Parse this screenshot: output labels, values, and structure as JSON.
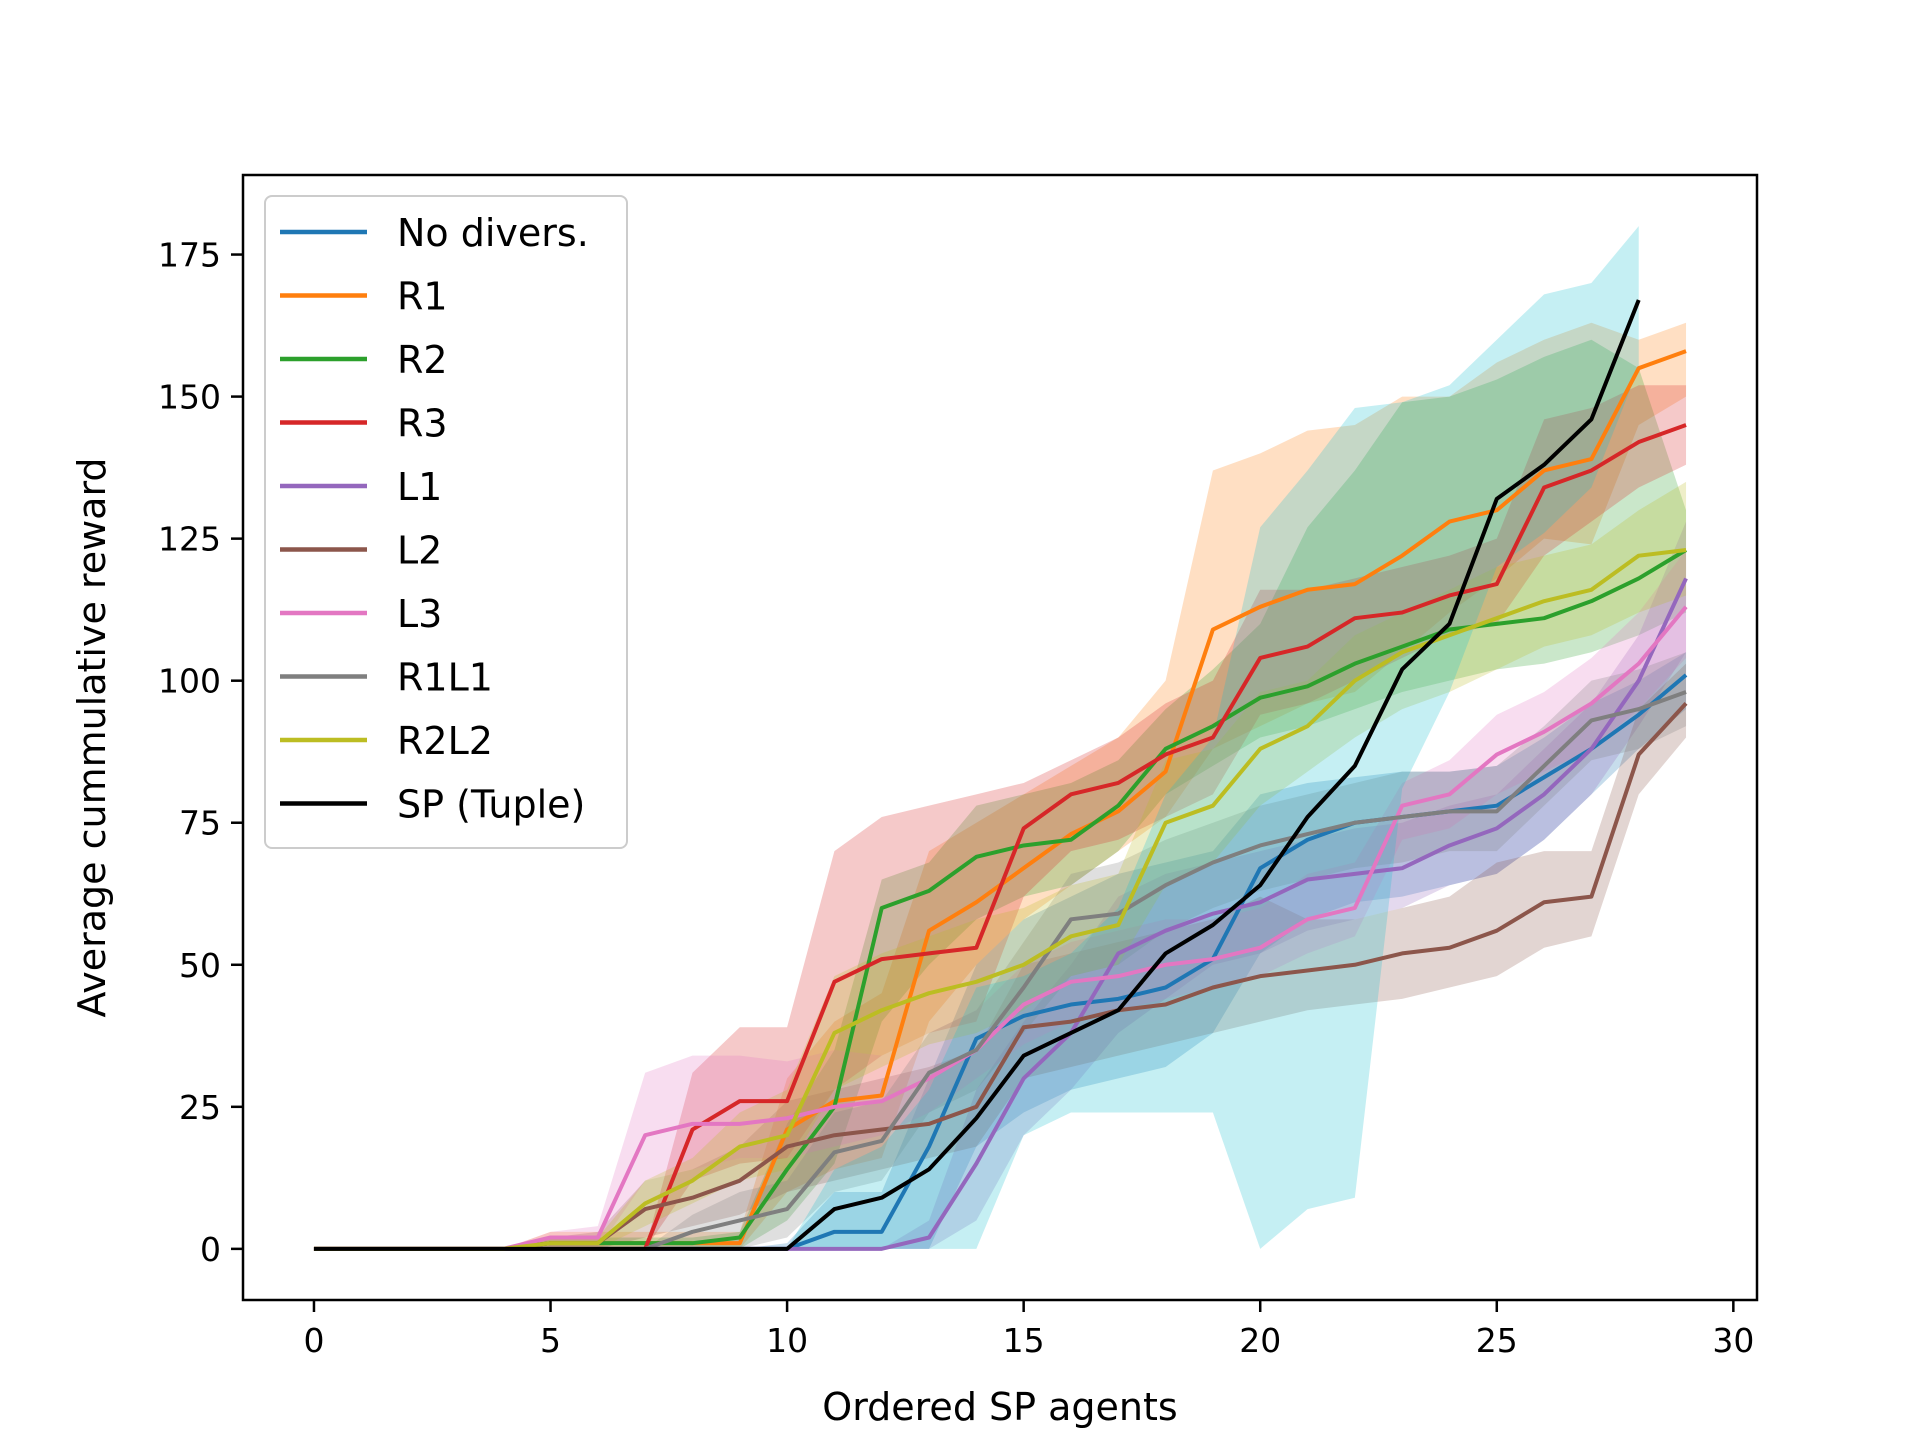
{
  "chart_data": {
    "type": "line",
    "title": "",
    "xlabel": "Ordered SP agents",
    "ylabel": "Average cummulative reward",
    "xlim": [
      -1.5,
      30.5
    ],
    "ylim": [
      -9,
      189
    ],
    "xticks": [
      0,
      5,
      10,
      15,
      20,
      25,
      30
    ],
    "yticks": [
      0,
      25,
      50,
      75,
      100,
      125,
      150,
      175
    ],
    "grid": false,
    "legend_position": "top-left",
    "series": [
      {
        "name": "No divers.",
        "color": "#1f77b4",
        "x": [
          0,
          1,
          2,
          3,
          4,
          5,
          6,
          7,
          8,
          9,
          10,
          11,
          12,
          13,
          14,
          15,
          16,
          17,
          18,
          19,
          20,
          21,
          22,
          23,
          24,
          25,
          26,
          27,
          28,
          29
        ],
        "values": [
          0,
          0,
          0,
          0,
          0,
          0,
          0,
          0,
          0,
          0,
          0,
          3,
          3,
          18,
          37,
          41,
          43,
          44,
          46,
          51,
          67,
          72,
          75,
          76,
          77,
          78,
          83,
          88,
          94,
          101
        ],
        "lower": [
          0,
          0,
          0,
          0,
          0,
          0,
          0,
          0,
          0,
          0,
          0,
          0,
          0,
          0,
          18,
          24,
          28,
          30,
          32,
          38,
          52,
          58,
          61,
          62,
          64,
          66,
          72,
          80,
          88,
          95
        ],
        "upper": [
          0,
          0,
          0,
          0,
          0,
          0,
          0,
          0,
          0,
          0,
          1,
          10,
          10,
          30,
          50,
          58,
          62,
          66,
          68,
          70,
          80,
          82,
          83,
          84,
          84,
          85,
          90,
          96,
          100,
          105
        ]
      },
      {
        "name": "R1",
        "color": "#ff7f0e",
        "x": [
          0,
          1,
          2,
          3,
          4,
          5,
          6,
          7,
          8,
          9,
          10,
          11,
          12,
          13,
          14,
          15,
          16,
          17,
          18,
          19,
          20,
          21,
          22,
          23,
          24,
          25,
          26,
          27,
          28,
          29
        ],
        "values": [
          0,
          0,
          0,
          0,
          0,
          1,
          1,
          1,
          1,
          1,
          21,
          26,
          27,
          56,
          61,
          67,
          73,
          77,
          84,
          109,
          113,
          116,
          117,
          122,
          128,
          130,
          137,
          139,
          155,
          158
        ],
        "lower": [
          0,
          0,
          0,
          0,
          0,
          0,
          0,
          0,
          0,
          0,
          10,
          14,
          16,
          40,
          50,
          58,
          64,
          70,
          76,
          88,
          92,
          96,
          98,
          105,
          112,
          118,
          125,
          124,
          145,
          150
        ],
        "upper": [
          0,
          0,
          0,
          0,
          0,
          3,
          3,
          3,
          3,
          3,
          30,
          40,
          45,
          70,
          75,
          80,
          85,
          90,
          100,
          137,
          140,
          144,
          145,
          150,
          150,
          156,
          160,
          163,
          160,
          163
        ]
      },
      {
        "name": "R2",
        "color": "#2ca02c",
        "x": [
          0,
          1,
          2,
          3,
          4,
          5,
          6,
          7,
          8,
          9,
          10,
          11,
          12,
          13,
          14,
          15,
          16,
          17,
          18,
          19,
          20,
          21,
          22,
          23,
          24,
          25,
          26,
          27,
          28,
          29
        ],
        "values": [
          0,
          0,
          0,
          0,
          0,
          1,
          1,
          1,
          1,
          2,
          14,
          25,
          60,
          63,
          69,
          71,
          72,
          78,
          88,
          92,
          97,
          99,
          103,
          106,
          109,
          110,
          111,
          114,
          118,
          123
        ],
        "lower": [
          0,
          0,
          0,
          0,
          0,
          0,
          0,
          0,
          0,
          0,
          5,
          15,
          40,
          50,
          58,
          62,
          64,
          70,
          80,
          85,
          90,
          92,
          95,
          98,
          100,
          102,
          103,
          105,
          108,
          112
        ],
        "upper": [
          0,
          0,
          0,
          0,
          0,
          2,
          2,
          2,
          2,
          3,
          22,
          35,
          65,
          68,
          78,
          80,
          82,
          86,
          95,
          102,
          110,
          127,
          137,
          149,
          150,
          153,
          157,
          160,
          155,
          130
        ]
      },
      {
        "name": "R3",
        "color": "#d62728",
        "x": [
          0,
          1,
          2,
          3,
          4,
          5,
          6,
          7,
          8,
          9,
          10,
          11,
          12,
          13,
          14,
          15,
          16,
          17,
          18,
          19,
          20,
          21,
          22,
          23,
          24,
          25,
          26,
          27,
          28,
          29
        ],
        "values": [
          0,
          0,
          0,
          0,
          0,
          0,
          0,
          0,
          21,
          26,
          26,
          47,
          51,
          52,
          53,
          74,
          80,
          82,
          87,
          90,
          104,
          106,
          111,
          112,
          115,
          117,
          134,
          137,
          142,
          145
        ],
        "lower": [
          0,
          0,
          0,
          0,
          0,
          0,
          0,
          0,
          12,
          15,
          16,
          28,
          34,
          38,
          40,
          62,
          70,
          72,
          76,
          80,
          94,
          96,
          100,
          104,
          108,
          110,
          122,
          128,
          134,
          138
        ],
        "upper": [
          0,
          0,
          0,
          0,
          0,
          0,
          0,
          0,
          31,
          39,
          39,
          70,
          76,
          78,
          80,
          82,
          86,
          90,
          96,
          100,
          116,
          116,
          118,
          120,
          122,
          125,
          146,
          148,
          152,
          152
        ]
      },
      {
        "name": "L1",
        "color": "#9467bd",
        "x": [
          0,
          1,
          2,
          3,
          4,
          5,
          6,
          7,
          8,
          9,
          10,
          11,
          12,
          13,
          14,
          15,
          16,
          17,
          18,
          19,
          20,
          21,
          22,
          23,
          24,
          25,
          26,
          27,
          28,
          29
        ],
        "values": [
          0,
          0,
          0,
          0,
          0,
          0,
          0,
          0,
          0,
          0,
          0,
          0,
          0,
          2,
          15,
          30,
          38,
          52,
          56,
          59,
          61,
          65,
          66,
          67,
          71,
          74,
          80,
          88,
          100,
          118
        ],
        "lower": [
          0,
          0,
          0,
          0,
          0,
          0,
          0,
          0,
          0,
          0,
          0,
          0,
          0,
          0,
          5,
          20,
          28,
          38,
          44,
          50,
          52,
          56,
          58,
          60,
          64,
          66,
          72,
          80,
          92,
          105
        ],
        "upper": [
          0,
          0,
          0,
          0,
          0,
          0,
          0,
          0,
          0,
          0,
          0,
          0,
          0,
          5,
          28,
          40,
          50,
          62,
          66,
          68,
          70,
          72,
          74,
          75,
          78,
          80,
          88,
          96,
          108,
          128
        ]
      },
      {
        "name": "L2",
        "color": "#8c564b",
        "x": [
          0,
          1,
          2,
          3,
          4,
          5,
          6,
          7,
          8,
          9,
          10,
          11,
          12,
          13,
          14,
          15,
          16,
          17,
          18,
          19,
          20,
          21,
          22,
          23,
          24,
          25,
          26,
          27,
          28,
          29
        ],
        "values": [
          0,
          0,
          0,
          0,
          0,
          1,
          1,
          7,
          9,
          12,
          18,
          20,
          21,
          22,
          25,
          39,
          40,
          42,
          43,
          46,
          48,
          49,
          50,
          52,
          53,
          56,
          61,
          62,
          87,
          96
        ],
        "lower": [
          0,
          0,
          0,
          0,
          0,
          0,
          0,
          2,
          4,
          6,
          10,
          12,
          14,
          16,
          18,
          30,
          32,
          34,
          36,
          38,
          40,
          42,
          43,
          44,
          46,
          48,
          53,
          55,
          80,
          90
        ],
        "upper": [
          0,
          0,
          0,
          0,
          0,
          2,
          3,
          12,
          14,
          18,
          26,
          28,
          30,
          32,
          35,
          50,
          52,
          54,
          56,
          58,
          62,
          58,
          58,
          60,
          62,
          68,
          70,
          70,
          95,
          103
        ]
      },
      {
        "name": "L3",
        "color": "#e377c2",
        "x": [
          0,
          1,
          2,
          3,
          4,
          5,
          6,
          7,
          8,
          9,
          10,
          11,
          12,
          13,
          14,
          15,
          16,
          17,
          18,
          19,
          20,
          21,
          22,
          23,
          24,
          25,
          26,
          27,
          28,
          29
        ],
        "values": [
          0,
          0,
          0,
          0,
          0,
          2,
          2,
          20,
          22,
          22,
          23,
          25,
          26,
          30,
          35,
          43,
          47,
          48,
          50,
          51,
          53,
          58,
          60,
          78,
          80,
          87,
          91,
          96,
          103,
          113
        ],
        "lower": [
          0,
          0,
          0,
          0,
          0,
          0,
          0,
          12,
          14,
          16,
          16,
          18,
          20,
          24,
          30,
          36,
          40,
          42,
          44,
          46,
          48,
          52,
          55,
          72,
          74,
          80,
          84,
          88,
          95,
          104
        ],
        "upper": [
          0,
          0,
          0,
          0,
          0,
          3,
          4,
          31,
          34,
          34,
          33,
          35,
          34,
          38,
          42,
          50,
          54,
          56,
          58,
          58,
          60,
          66,
          68,
          82,
          86,
          94,
          98,
          104,
          112,
          123
        ]
      },
      {
        "name": "R1L1",
        "color": "#7f7f7f",
        "x": [
          0,
          1,
          2,
          3,
          4,
          5,
          6,
          7,
          8,
          9,
          10,
          11,
          12,
          13,
          14,
          15,
          16,
          17,
          18,
          19,
          20,
          21,
          22,
          23,
          24,
          25,
          26,
          27,
          28,
          29
        ],
        "values": [
          0,
          0,
          0,
          0,
          0,
          0,
          0,
          0,
          3,
          5,
          7,
          17,
          19,
          31,
          35,
          46,
          58,
          59,
          64,
          68,
          71,
          73,
          75,
          76,
          77,
          77,
          85,
          93,
          95,
          98
        ],
        "lower": [
          0,
          0,
          0,
          0,
          0,
          0,
          0,
          0,
          0,
          0,
          2,
          10,
          12,
          24,
          28,
          38,
          48,
          50,
          56,
          60,
          63,
          65,
          67,
          68,
          70,
          70,
          78,
          86,
          88,
          92
        ],
        "upper": [
          0,
          0,
          0,
          0,
          0,
          0,
          0,
          0,
          6,
          10,
          12,
          24,
          26,
          38,
          42,
          54,
          66,
          68,
          72,
          75,
          78,
          80,
          82,
          84,
          84,
          85,
          92,
          100,
          102,
          105
        ]
      },
      {
        "name": "R2L2",
        "color": "#bcbd22",
        "x": [
          0,
          1,
          2,
          3,
          4,
          5,
          6,
          7,
          8,
          9,
          10,
          11,
          12,
          13,
          14,
          15,
          16,
          17,
          18,
          19,
          20,
          21,
          22,
          23,
          24,
          25,
          26,
          27,
          28,
          29
        ],
        "values": [
          0,
          0,
          0,
          0,
          0,
          1,
          1,
          8,
          12,
          18,
          20,
          38,
          42,
          45,
          47,
          50,
          55,
          57,
          75,
          78,
          88,
          92,
          100,
          105,
          108,
          111,
          114,
          116,
          122,
          123
        ],
        "lower": [
          0,
          0,
          0,
          0,
          0,
          0,
          0,
          4,
          8,
          12,
          14,
          28,
          32,
          36,
          38,
          42,
          48,
          50,
          64,
          68,
          78,
          84,
          90,
          95,
          98,
          102,
          106,
          108,
          112,
          115
        ],
        "upper": [
          0,
          0,
          0,
          0,
          0,
          2,
          2,
          12,
          16,
          24,
          28,
          48,
          52,
          55,
          58,
          60,
          64,
          66,
          86,
          88,
          98,
          100,
          108,
          112,
          116,
          120,
          122,
          124,
          130,
          135
        ]
      },
      {
        "name": "SP (Tuple)",
        "color": "#000000",
        "band_color": "#17becf",
        "x": [
          0,
          1,
          2,
          3,
          4,
          5,
          6,
          7,
          8,
          9,
          10,
          11,
          12,
          13,
          14,
          15,
          16,
          17,
          18,
          19,
          20,
          21,
          22,
          23,
          24,
          25,
          26,
          27,
          28
        ],
        "values": [
          0,
          0,
          0,
          0,
          0,
          0,
          0,
          0,
          0,
          0,
          0,
          7,
          9,
          14,
          23,
          34,
          38,
          42,
          52,
          57,
          64,
          76,
          85,
          102,
          110,
          132,
          138,
          146,
          167
        ],
        "lower": [
          0,
          0,
          0,
          0,
          0,
          0,
          0,
          0,
          0,
          0,
          0,
          0,
          0,
          0,
          0,
          20,
          24,
          24,
          24,
          24,
          0,
          7,
          9,
          81,
          98,
          120,
          126,
          134,
          155
        ],
        "upper": [
          0,
          0,
          0,
          0,
          0,
          0,
          0,
          0,
          0,
          0,
          0,
          14,
          18,
          28,
          46,
          48,
          52,
          60,
          80,
          90,
          127,
          137,
          148,
          149,
          152,
          160,
          168,
          170,
          180
        ]
      }
    ]
  }
}
